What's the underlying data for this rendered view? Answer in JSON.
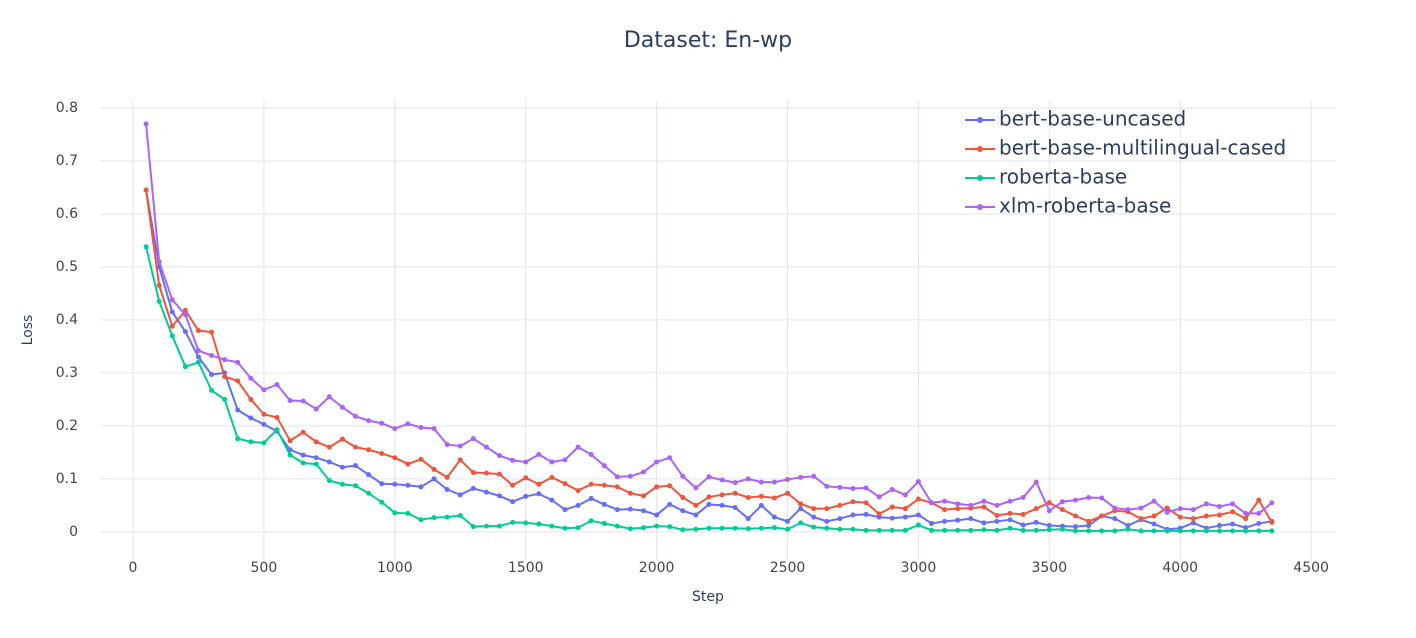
{
  "chart_data": {
    "type": "line",
    "title": "Dataset: En-wp",
    "x_label": "Step",
    "y_label": "Loss",
    "x": [
      50,
      100,
      150,
      200,
      250,
      300,
      350,
      400,
      450,
      500,
      550,
      600,
      650,
      700,
      750,
      800,
      850,
      900,
      950,
      1000,
      1050,
      1100,
      1150,
      1200,
      1250,
      1300,
      1350,
      1400,
      1450,
      1500,
      1550,
      1600,
      1650,
      1700,
      1750,
      1800,
      1850,
      1900,
      1950,
      2000,
      2050,
      2100,
      2150,
      2200,
      2250,
      2300,
      2350,
      2400,
      2450,
      2500,
      2550,
      2600,
      2650,
      2700,
      2750,
      2800,
      2850,
      2900,
      2950,
      3000,
      3050,
      3100,
      3150,
      3200,
      3250,
      3300,
      3350,
      3400,
      3450,
      3500,
      3550,
      3600,
      3650,
      3700,
      3750,
      3800,
      3850,
      3900,
      3950,
      4000,
      4050,
      4100,
      4150,
      4200,
      4250,
      4300,
      4350
    ],
    "series": [
      {
        "name": "bert-base-uncased",
        "color": "#636efa",
        "values": [
          0.645,
          0.5,
          0.415,
          0.378,
          0.33,
          0.297,
          0.3,
          0.23,
          0.215,
          0.203,
          0.19,
          0.155,
          0.145,
          0.14,
          0.132,
          0.122,
          0.125,
          0.108,
          0.091,
          0.09,
          0.088,
          0.085,
          0.1,
          0.08,
          0.07,
          0.082,
          0.075,
          0.068,
          0.057,
          0.067,
          0.072,
          0.06,
          0.042,
          0.05,
          0.063,
          0.052,
          0.042,
          0.043,
          0.04,
          0.032,
          0.052,
          0.04,
          0.032,
          0.052,
          0.05,
          0.046,
          0.025,
          0.05,
          0.028,
          0.02,
          0.044,
          0.028,
          0.02,
          0.025,
          0.032,
          0.033,
          0.028,
          0.026,
          0.028,
          0.032,
          0.016,
          0.02,
          0.022,
          0.025,
          0.017,
          0.02,
          0.023,
          0.013,
          0.018,
          0.012,
          0.011,
          0.01,
          0.012,
          0.03,
          0.025,
          0.012,
          0.023,
          0.015,
          0.005,
          0.007,
          0.017,
          0.007,
          0.012,
          0.015,
          0.008,
          0.016,
          0.02
        ]
      },
      {
        "name": "bert-base-multilingual-cased",
        "color": "#ef553b",
        "values": [
          0.645,
          0.465,
          0.388,
          0.418,
          0.38,
          0.377,
          0.293,
          0.285,
          0.25,
          0.222,
          0.216,
          0.172,
          0.188,
          0.17,
          0.16,
          0.175,
          0.16,
          0.155,
          0.148,
          0.14,
          0.128,
          0.137,
          0.118,
          0.103,
          0.136,
          0.112,
          0.111,
          0.109,
          0.088,
          0.102,
          0.09,
          0.103,
          0.091,
          0.078,
          0.09,
          0.088,
          0.085,
          0.073,
          0.068,
          0.085,
          0.087,
          0.065,
          0.05,
          0.066,
          0.07,
          0.073,
          0.065,
          0.067,
          0.064,
          0.073,
          0.053,
          0.044,
          0.044,
          0.05,
          0.057,
          0.055,
          0.034,
          0.047,
          0.044,
          0.062,
          0.055,
          0.042,
          0.044,
          0.045,
          0.047,
          0.031,
          0.035,
          0.033,
          0.044,
          0.055,
          0.042,
          0.03,
          0.02,
          0.03,
          0.04,
          0.038,
          0.025,
          0.03,
          0.045,
          0.028,
          0.025,
          0.03,
          0.032,
          0.038,
          0.025,
          0.06,
          0.018
        ]
      },
      {
        "name": "roberta-base",
        "color": "#00cc96",
        "values": [
          0.538,
          0.435,
          0.37,
          0.312,
          0.32,
          0.267,
          0.25,
          0.176,
          0.17,
          0.168,
          0.193,
          0.145,
          0.13,
          0.128,
          0.097,
          0.09,
          0.087,
          0.073,
          0.056,
          0.036,
          0.035,
          0.023,
          0.027,
          0.028,
          0.031,
          0.01,
          0.011,
          0.011,
          0.018,
          0.017,
          0.015,
          0.011,
          0.007,
          0.008,
          0.021,
          0.016,
          0.011,
          0.006,
          0.008,
          0.011,
          0.01,
          0.004,
          0.005,
          0.007,
          0.007,
          0.007,
          0.006,
          0.007,
          0.008,
          0.005,
          0.017,
          0.009,
          0.007,
          0.005,
          0.005,
          0.003,
          0.003,
          0.003,
          0.003,
          0.013,
          0.003,
          0.003,
          0.003,
          0.003,
          0.004,
          0.003,
          0.007,
          0.003,
          0.003,
          0.004,
          0.005,
          0.002,
          0.002,
          0.002,
          0.002,
          0.005,
          0.002,
          0.002,
          0.002,
          0.002,
          0.002,
          0.002,
          0.002,
          0.002,
          0.002,
          0.002,
          0.002
        ]
      },
      {
        "name": "xlm-roberta-base",
        "color": "#ab63fa",
        "values": [
          0.77,
          0.51,
          0.438,
          0.41,
          0.342,
          0.333,
          0.325,
          0.32,
          0.29,
          0.268,
          0.278,
          0.248,
          0.247,
          0.232,
          0.255,
          0.235,
          0.218,
          0.21,
          0.205,
          0.195,
          0.204,
          0.197,
          0.195,
          0.165,
          0.162,
          0.176,
          0.16,
          0.144,
          0.135,
          0.132,
          0.146,
          0.132,
          0.136,
          0.16,
          0.146,
          0.125,
          0.104,
          0.105,
          0.113,
          0.132,
          0.14,
          0.105,
          0.083,
          0.104,
          0.098,
          0.093,
          0.1,
          0.094,
          0.094,
          0.099,
          0.103,
          0.105,
          0.086,
          0.084,
          0.082,
          0.083,
          0.066,
          0.08,
          0.07,
          0.095,
          0.055,
          0.058,
          0.053,
          0.05,
          0.058,
          0.05,
          0.058,
          0.065,
          0.094,
          0.04,
          0.057,
          0.06,
          0.065,
          0.064,
          0.045,
          0.042,
          0.045,
          0.058,
          0.037,
          0.044,
          0.042,
          0.053,
          0.048,
          0.053,
          0.035,
          0.035,
          0.055
        ]
      }
    ],
    "xlim": [
      -126,
      4595
    ],
    "ylim": [
      -0.053,
      0.815
    ],
    "xticks": [
      0,
      500,
      1000,
      1500,
      2000,
      2500,
      3000,
      3500,
      4000,
      4500
    ],
    "yticks": [
      0,
      0.1,
      0.2,
      0.3,
      0.4,
      0.5,
      0.6,
      0.7,
      0.8
    ],
    "grid": true,
    "legend": "top-right"
  }
}
